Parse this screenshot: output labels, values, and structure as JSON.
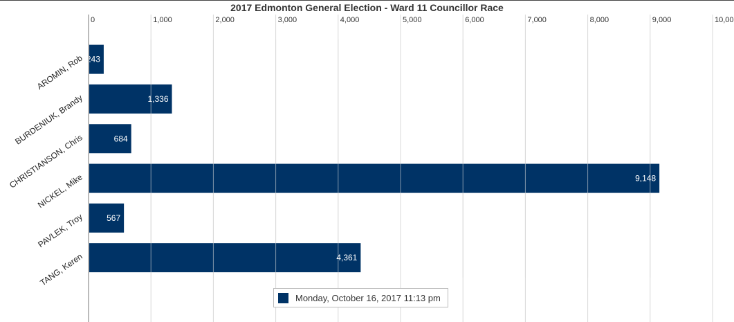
{
  "chart_data": {
    "type": "bar",
    "orientation": "horizontal",
    "title": "2017 Edmonton General Election - Ward 11 Councillor Race",
    "xlabel": "",
    "ylabel": "",
    "categories": [
      "AROMIN, Rob",
      "BURDENIUK, Brandy",
      "CHRISTIANSON, Chris",
      "NICKEL, Mike",
      "PAVLEK, Troy",
      "TANG, Keren"
    ],
    "series": [
      {
        "name": "Monday, October 16, 2017 11:13 pm",
        "values": [
          243,
          1336,
          684,
          9148,
          567,
          4361
        ],
        "data_labels": [
          "243",
          "1,336",
          "684",
          "9,148",
          "567",
          "4,361"
        ]
      }
    ],
    "xlim": [
      0,
      10000
    ],
    "x_ticks": [
      0,
      1000,
      2000,
      3000,
      4000,
      5000,
      6000,
      7000,
      8000,
      9000,
      10000
    ],
    "x_tick_labels": [
      "0",
      "1,000",
      "2,000",
      "3,000",
      "4,000",
      "5,000",
      "6,000",
      "7,000",
      "8,000",
      "9,000",
      "10,000"
    ],
    "x_axis_position": "top",
    "grid": true,
    "legend_position": "bottom",
    "colors": {
      "bar": "#003366",
      "grid": "#d8d8d8",
      "axis": "#bbbbbb"
    }
  }
}
